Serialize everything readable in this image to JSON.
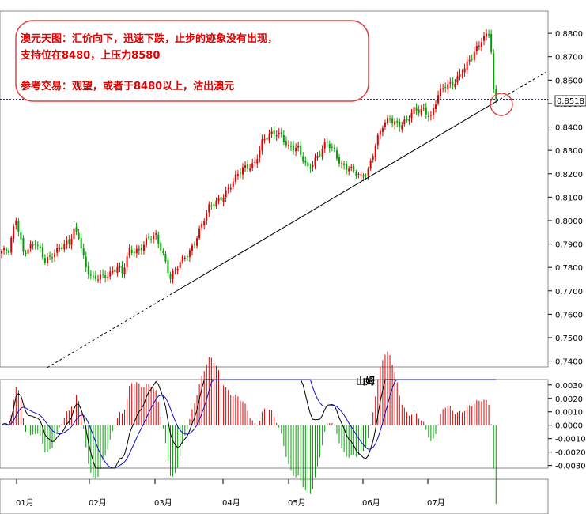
{
  "chart_data": [
    {
      "type": "candlestick",
      "ylim": [
        0.7375,
        0.8895
      ],
      "yticks": [
        "0.8800",
        "0.8700",
        "0.8600",
        "0.8500",
        "0.8400",
        "0.8300",
        "0.8200",
        "0.8100",
        "0.8000",
        "0.7900",
        "0.7800",
        "0.7700",
        "0.7600",
        "0.7500",
        "0.7400"
      ],
      "current_price_label": "0.8518",
      "current_price": 0.8518,
      "x_months": [
        "01月",
        "02月",
        "03月",
        "04月",
        "05月",
        "06月",
        "07月"
      ],
      "annotation": {
        "line1": "澳元天图：汇价向下，迅速下跌，止步的迹象没有出现，",
        "line2": "支持位在8480，上压力8580",
        "line3": "参考交易：观望，或者于8480以上，沽出澳元"
      },
      "trendline": {
        "from": {
          "bar": 71,
          "price": 0.769
        },
        "to": {
          "bar": 205,
          "price": 0.8508
        }
      },
      "bars": []
    },
    {
      "type": "macd",
      "title": "山姆",
      "ylim": [
        -0.0032,
        0.0034
      ],
      "yticks": [
        "0.0030",
        "0.0020",
        "0.0010",
        "0.0000",
        "-0.0010",
        "-0.0020",
        "-0.0030"
      ]
    }
  ],
  "colors": {
    "up": "#e00000",
    "down": "#00a000",
    "signal": "#1010c0",
    "macd": "#000000",
    "price_line": "#0000c0",
    "grid": "#cccccc"
  }
}
